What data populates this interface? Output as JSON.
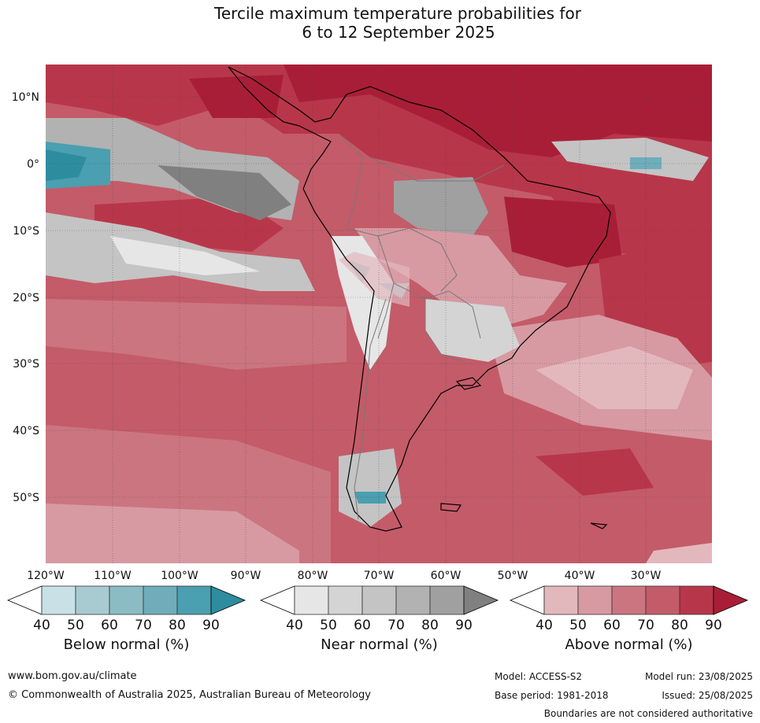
{
  "title_line1": "Tercile maximum temperature probabilities for",
  "title_line2": "6 to 12 September 2025",
  "lat_labels": [
    "10°N",
    "0°",
    "10°S",
    "20°S",
    "30°S",
    "40°S",
    "50°S"
  ],
  "lon_labels": [
    "120°W",
    "110°W",
    "100°W",
    "90°W",
    "80°W",
    "70°W",
    "60°W",
    "50°W",
    "40°W",
    "30°W"
  ],
  "colorbars": [
    {
      "title": "Below normal (%)",
      "ticks": [
        "40",
        "50",
        "60",
        "70",
        "80",
        "90"
      ],
      "colors": [
        "#ffffff",
        "#c9e0e7",
        "#a8cbd2",
        "#8bbcc4",
        "#6fadbb",
        "#4a9fb0",
        "#2d8d9f"
      ]
    },
    {
      "title": "Near normal (%)",
      "ticks": [
        "40",
        "50",
        "60",
        "70",
        "80",
        "90"
      ],
      "colors": [
        "#ffffff",
        "#e6e6e6",
        "#d4d4d4",
        "#c4c4c4",
        "#b2b2b2",
        "#a0a0a0",
        "#808080"
      ]
    },
    {
      "title": "Above normal (%)",
      "ticks": [
        "40",
        "50",
        "60",
        "70",
        "80",
        "90"
      ],
      "colors": [
        "#ffffff",
        "#e3b8bd",
        "#d79aa2",
        "#cb7580",
        "#c45b69",
        "#b8364a",
        "#a91e37"
      ]
    }
  ],
  "footer": {
    "website": "www.bom.gov.au/climate",
    "copyright": "© Commonwealth of Australia 2025, Australian Bureau of Meteorology",
    "model": "Model: ACCESS-S2",
    "model_run": "Model run: 23/08/2025",
    "base_period": "Base period: 1981-2018",
    "issued": "Issued: 25/08/2025",
    "disclaimer": "Boundaries are not considered authoritative"
  }
}
